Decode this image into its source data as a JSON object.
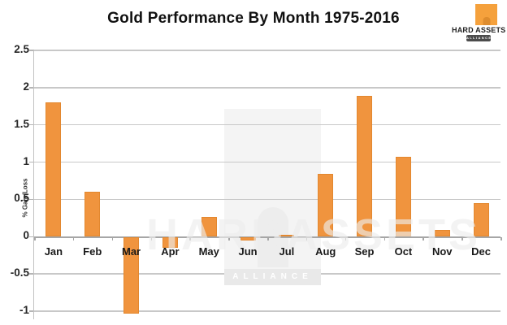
{
  "title": "Gold Performance By Month 1975-2016",
  "logo": {
    "name": "HARD ASSETS",
    "badge": "ALLIANCE"
  },
  "watermark": {
    "text": "HARDASSETS",
    "band": "ALLIANCE"
  },
  "chart_data": {
    "type": "bar",
    "title": "Gold Performance By Month 1975-2016",
    "categories": [
      "Jan",
      "Feb",
      "Mar",
      "Apr",
      "May",
      "Jun",
      "Jul",
      "Aug",
      "Sep",
      "Oct",
      "Nov",
      "Dec"
    ],
    "values": [
      1.8,
      0.6,
      -1.02,
      -0.14,
      0.26,
      -0.04,
      0.02,
      0.84,
      1.89,
      1.07,
      0.09,
      0.45
    ],
    "xlabel": "",
    "ylabel": "% Gain/Loss",
    "ylim": [
      -1,
      2.5
    ],
    "yticks": [
      2.5,
      2,
      1.5,
      1,
      0.5,
      0,
      -0.5,
      -1
    ],
    "grid": true,
    "legend": "none",
    "bar_color": "#F0943E",
    "gridline_color": "#C8C8C8",
    "zero_line_color": "#A6A6A6"
  }
}
